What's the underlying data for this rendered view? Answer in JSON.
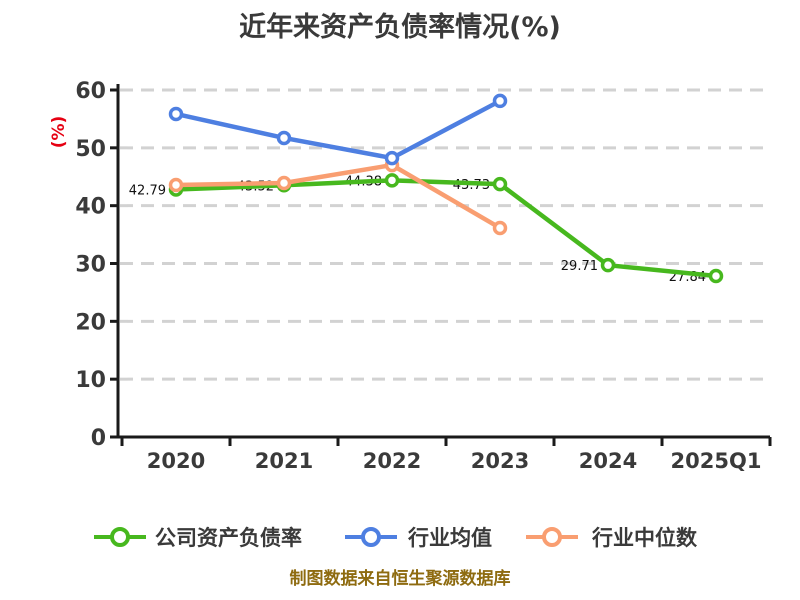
{
  "title": "近年来资产负债率情况(%)",
  "y_axis_unit": "(%)",
  "footer": "制图数据来自恒生聚源数据库",
  "colors": {
    "company": "#47b81e",
    "mean": "#4e7fe1",
    "median": "#f99e71",
    "grid": "#d2d2d2",
    "axis": "#1a1a1a",
    "text": "#3a3a3a",
    "y_unit_label": "#e60012",
    "footer": "#8e6b10",
    "point_label": "#111111",
    "marker_fill": "#ffffff"
  },
  "chart_data": {
    "type": "line",
    "title": "近年来资产负债率情况(%)",
    "xlabel": "",
    "ylabel": "(%)",
    "categories": [
      "2020",
      "2021",
      "2022",
      "2023",
      "2024",
      "2025Q1"
    ],
    "ylim": [
      0,
      60
    ],
    "ytick_step": 10,
    "grid": "horizontal-dashed",
    "legend_position": "bottom",
    "series": [
      {
        "name": "公司资产负债率",
        "color_key": "company",
        "values": [
          42.79,
          43.52,
          44.38,
          43.73,
          29.71,
          27.84
        ],
        "show_point_labels": true
      },
      {
        "name": "行业中位数",
        "color_key": "median",
        "values": [
          43.57,
          43.92,
          47.02,
          36.14
        ],
        "show_point_labels": false
      },
      {
        "name": "行业均值",
        "color_key": "mean",
        "values": [
          55.86,
          51.71,
          48.23,
          58.11
        ],
        "show_point_labels": false
      }
    ],
    "legend": [
      {
        "label": "公司资产负债率",
        "color_key": "company"
      },
      {
        "label": "行业均值",
        "color_key": "mean"
      },
      {
        "label": "行业中位数",
        "color_key": "median"
      }
    ]
  }
}
